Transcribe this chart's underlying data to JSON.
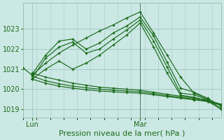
{
  "background_color": "#cce8e4",
  "grid_color": "#a0ccc8",
  "line_color": "#1a6b1a",
  "ylabel_ticks": [
    1019,
    1020,
    1021,
    1022,
    1023
  ],
  "ylim": [
    1018.6,
    1024.3
  ],
  "xlabel": "Pression niveau de la mer( hPa )",
  "xlabel_fontsize": 8,
  "tick_fontsize": 7,
  "xtick_labels": [
    "Lun",
    "Mar"
  ],
  "xtick_positions": [
    6,
    54
  ],
  "vline_x": 54,
  "xlim": [
    2,
    90
  ],
  "series": [
    {
      "x": [
        2,
        6,
        12,
        18,
        24,
        30,
        36,
        42,
        48,
        54,
        60,
        66,
        72,
        78,
        84,
        90
      ],
      "y": [
        1021.05,
        1020.7,
        1021.3,
        1021.8,
        1022.2,
        1022.55,
        1022.9,
        1023.2,
        1023.55,
        1023.85,
        1022.8,
        1021.7,
        1020.6,
        1019.8,
        1019.5,
        null
      ]
    },
    {
      "x": [
        6,
        12,
        18,
        24,
        30,
        36,
        42,
        48,
        54,
        60,
        66,
        72,
        78,
        84,
        90
      ],
      "y": [
        1020.75,
        1021.7,
        1022.4,
        1022.5,
        1022.0,
        1022.3,
        1022.8,
        1023.15,
        1023.6,
        1022.65,
        1021.35,
        1020.05,
        1019.85,
        1019.55,
        1019.15
      ]
    },
    {
      "x": [
        6,
        12,
        18,
        24,
        30,
        36,
        42,
        48,
        54,
        60,
        66,
        72,
        78,
        84,
        90
      ],
      "y": [
        1020.55,
        1021.55,
        1022.1,
        1022.35,
        1021.8,
        1022.0,
        1022.5,
        1022.95,
        1023.45,
        1022.4,
        1021.1,
        1019.8,
        1019.72,
        1019.45,
        1019.05
      ]
    },
    {
      "x": [
        6,
        12,
        18,
        24,
        30,
        36,
        42,
        48,
        54,
        60,
        66,
        72,
        78,
        84,
        90
      ],
      "y": [
        1020.5,
        1021.0,
        1021.4,
        1021.0,
        1021.3,
        1021.7,
        1022.2,
        1022.7,
        1023.3,
        1022.1,
        1020.8,
        1019.7,
        1019.6,
        1019.4,
        1019.0
      ]
    },
    {
      "x": [
        6,
        12,
        18,
        24,
        30,
        36,
        42,
        48,
        54,
        60,
        66,
        72,
        78,
        84,
        90
      ],
      "y": [
        1020.8,
        1020.6,
        1020.45,
        1020.3,
        1020.2,
        1020.1,
        1020.05,
        1020.0,
        1019.95,
        1019.85,
        1019.75,
        1019.65,
        1019.55,
        1019.45,
        1019.25
      ]
    },
    {
      "x": [
        6,
        12,
        18,
        24,
        30,
        36,
        42,
        48,
        54,
        60,
        66,
        72,
        78,
        84,
        90
      ],
      "y": [
        1020.5,
        1020.3,
        1020.15,
        1020.05,
        1019.97,
        1019.91,
        1019.87,
        1019.83,
        1019.8,
        1019.72,
        1019.63,
        1019.55,
        1019.47,
        1019.38,
        1019.2
      ]
    },
    {
      "x": [
        6,
        12,
        18,
        24,
        30,
        36,
        42,
        48,
        54,
        60,
        66,
        72,
        78,
        84,
        90
      ],
      "y": [
        1020.65,
        1020.42,
        1020.27,
        1020.15,
        1020.07,
        1020.0,
        1019.95,
        1019.91,
        1019.87,
        1019.78,
        1019.68,
        1019.59,
        1019.5,
        1019.41,
        1019.22
      ]
    }
  ]
}
